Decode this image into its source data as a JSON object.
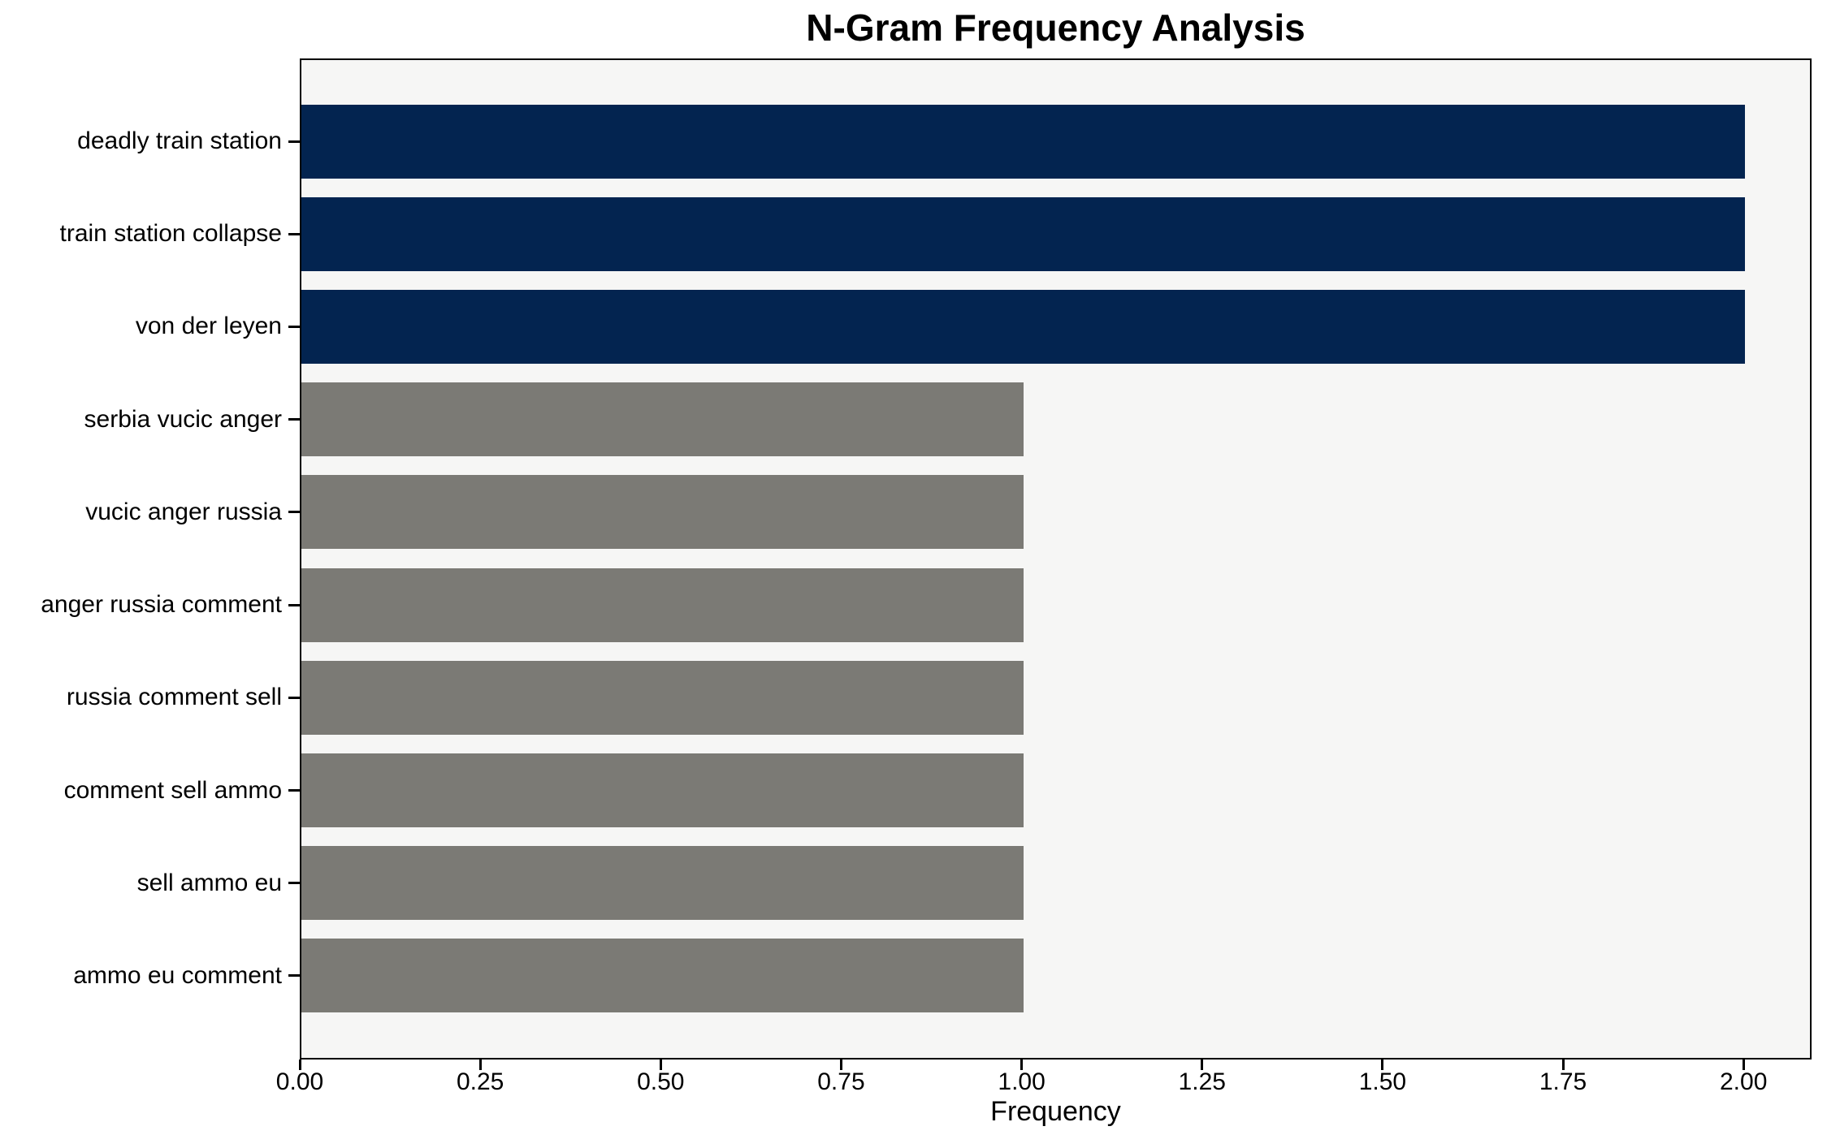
{
  "chart_data": {
    "type": "bar",
    "orientation": "horizontal",
    "title": "N-Gram Frequency Analysis",
    "xlabel": "Frequency",
    "ylabel": "",
    "categories": [
      "deadly train station",
      "train station collapse",
      "von der leyen",
      "serbia vucic anger",
      "vucic anger russia",
      "anger russia comment",
      "russia comment sell",
      "comment sell ammo",
      "sell ammo eu",
      "ammo eu comment"
    ],
    "values": [
      2,
      2,
      2,
      1,
      1,
      1,
      1,
      1,
      1,
      1
    ],
    "bar_colors": [
      "#032450",
      "#032450",
      "#032450",
      "#7b7a75",
      "#7b7a75",
      "#7b7a75",
      "#7b7a75",
      "#7b7a75",
      "#7b7a75",
      "#7b7a75"
    ],
    "xticks": [
      0.0,
      0.25,
      0.5,
      0.75,
      1.0,
      1.25,
      1.5,
      1.75,
      2.0
    ],
    "xtick_labels": [
      "0.00",
      "0.25",
      "0.50",
      "0.75",
      "1.00",
      "1.25",
      "1.50",
      "1.75",
      "2.00"
    ],
    "xlim": [
      0,
      2.094
    ],
    "grid": false,
    "legend_position": "none",
    "colors": {
      "highlight_bar": "#032450",
      "default_bar": "#7b7a75",
      "plot_background": "#f6f6f5",
      "figure_background": "#ffffff",
      "spine": "#000000",
      "text": "#000000"
    }
  }
}
